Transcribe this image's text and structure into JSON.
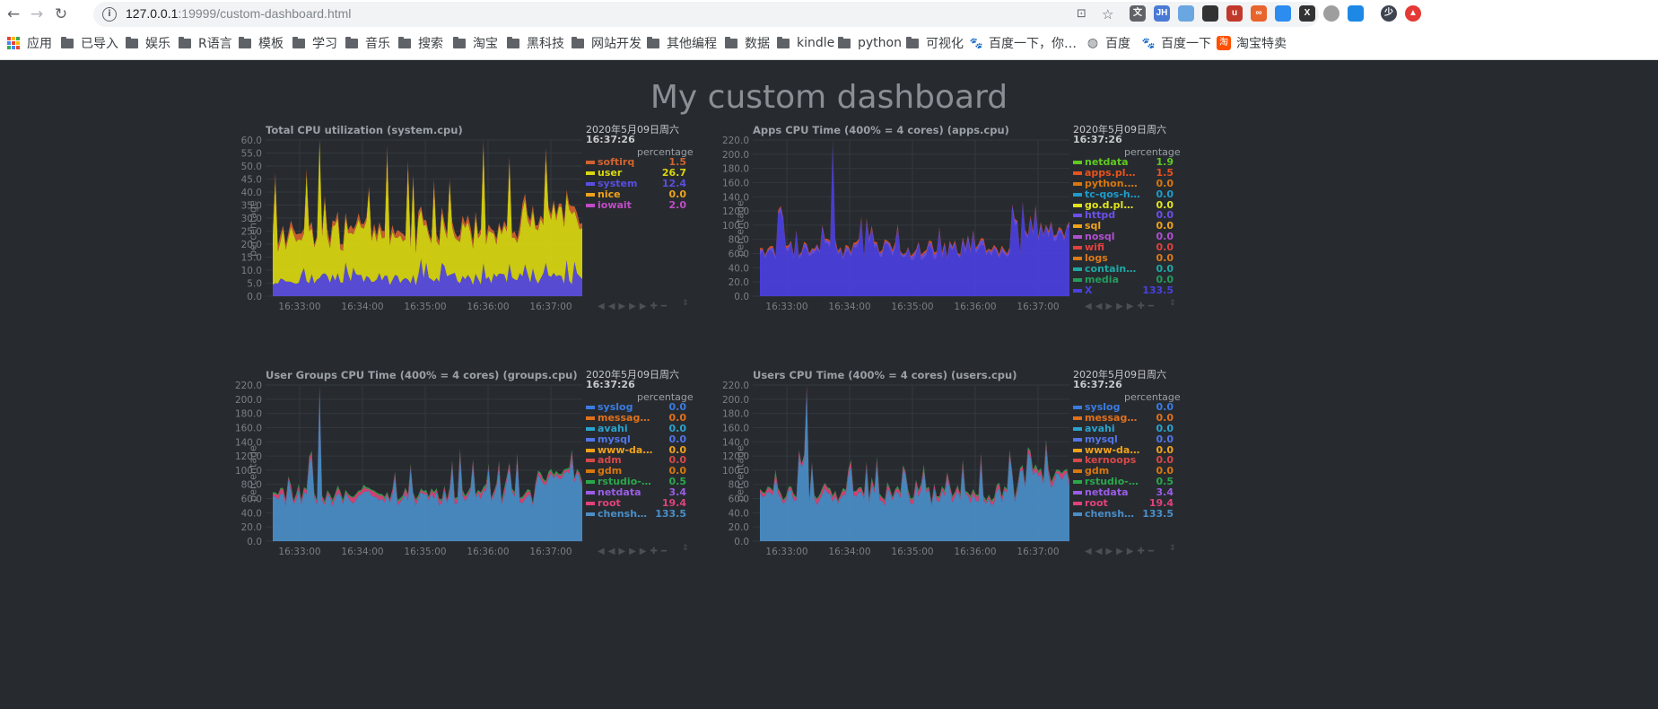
{
  "browser": {
    "url_host": "127.0.0.1",
    "url_rest": ":19999/custom-dashboard.html",
    "bookmarks": [
      {
        "label": "应用",
        "icon": "apps-grid-icon"
      },
      {
        "label": "已导入",
        "icon": "folder-icon"
      },
      {
        "label": "娱乐",
        "icon": "folder-icon"
      },
      {
        "label": "R语言",
        "icon": "folder-icon"
      },
      {
        "label": "模板",
        "icon": "folder-icon"
      },
      {
        "label": "学习",
        "icon": "folder-icon"
      },
      {
        "label": "音乐",
        "icon": "folder-icon"
      },
      {
        "label": "搜索",
        "icon": "folder-icon"
      },
      {
        "label": "淘宝",
        "icon": "folder-icon"
      },
      {
        "label": "黑科技",
        "icon": "folder-icon"
      },
      {
        "label": "网站开发",
        "icon": "folder-icon"
      },
      {
        "label": "其他编程",
        "icon": "folder-icon"
      },
      {
        "label": "数据",
        "icon": "folder-icon"
      },
      {
        "label": "kindle",
        "icon": "folder-icon"
      },
      {
        "label": "python",
        "icon": "folder-icon"
      },
      {
        "label": "可视化",
        "icon": "folder-icon"
      },
      {
        "label": "百度一下，你…",
        "icon": "baidu-paw-icon"
      },
      {
        "label": "百度",
        "icon": "globe-icon"
      },
      {
        "label": "百度一下",
        "icon": "baidu-paw-icon"
      },
      {
        "label": "淘宝特卖",
        "icon": "taobao-icon"
      }
    ],
    "extensions": [
      {
        "text": "文",
        "color": "#5f6368",
        "name": "translate-icon"
      },
      {
        "text": "JH",
        "color": "#4a7bd4",
        "name": "jsonhandle-icon"
      },
      {
        "text": "",
        "color": "#6aa6e0",
        "name": "shield-ext-icon"
      },
      {
        "text": "",
        "color": "#333333",
        "name": "ghost-ext-icon"
      },
      {
        "text": "u",
        "color": "#c0392b",
        "name": "ublock-icon"
      },
      {
        "text": "∞",
        "color": "#e8642c",
        "name": "infinity-ext-icon"
      },
      {
        "text": "",
        "color": "#2d8cf0",
        "name": "feather-ext-icon"
      },
      {
        "text": "X",
        "color": "#333333",
        "name": "x-ext-icon"
      },
      {
        "text": "",
        "color": "#9e9e9e",
        "name": "circle-ext-icon"
      },
      {
        "text": "",
        "color": "#1e88e5",
        "name": "clock-ext-icon"
      },
      {
        "text": "少",
        "color": "#3d4450",
        "name": "avatar"
      },
      {
        "text": "▲",
        "color": "#e53935",
        "name": "update-icon"
      }
    ]
  },
  "dashboard": {
    "title": "My custom dashboard",
    "charts": [
      {
        "title": "Total CPU utilization (system.cpu)",
        "ylabel": "percentage",
        "unit": "percentage",
        "date": "2020年5月09日周六",
        "time": "16:37:26",
        "yticks": [
          "60.0",
          "55.0",
          "50.0",
          "45.0",
          "40.0",
          "35.0",
          "30.0",
          "25.0",
          "20.0",
          "15.0",
          "10.0",
          "5.0",
          "0.0"
        ],
        "xticks": [
          "16:33:00",
          "16:34:00",
          "16:35:00",
          "16:36:00",
          "16:37:00"
        ],
        "legend": [
          {
            "name": "softirq",
            "value": "1.5",
            "color": "#d1632f"
          },
          {
            "name": "user",
            "value": "26.7",
            "color": "#d9d70f"
          },
          {
            "name": "system",
            "value": "12.4",
            "color": "#5a4ee0"
          },
          {
            "name": "nice",
            "value": "0.0",
            "color": "#f0a21a"
          },
          {
            "name": "iowait",
            "value": "2.0",
            "color": "#c24bc8"
          }
        ]
      },
      {
        "title": "Apps CPU Time (400% = 4 cores) (apps.cpu)",
        "ylabel": "percentage",
        "unit": "percentage",
        "date": "2020年5月09日周六",
        "time": "16:37:26",
        "yticks": [
          "220.0",
          "200.0",
          "180.0",
          "160.0",
          "140.0",
          "120.0",
          "100.0",
          "80.0",
          "60.0",
          "40.0",
          "20.0",
          "0.0"
        ],
        "xticks": [
          "16:33:00",
          "16:34:00",
          "16:35:00",
          "16:36:00",
          "16:37:00"
        ],
        "legend": [
          {
            "name": "netdata",
            "value": "1.9",
            "color": "#60c820"
          },
          {
            "name": "apps.plu…",
            "value": "1.5",
            "color": "#e8521c"
          },
          {
            "name": "python.…",
            "value": "0.0",
            "color": "#d9770c"
          },
          {
            "name": "tc-qos-h…",
            "value": "0.0",
            "color": "#1f9bc9"
          },
          {
            "name": "go.d.plu…",
            "value": "0.0",
            "color": "#e3e41b"
          },
          {
            "name": "httpd",
            "value": "0.0",
            "color": "#6b4fe8"
          },
          {
            "name": "sql",
            "value": "0.0",
            "color": "#f0a21a"
          },
          {
            "name": "nosql",
            "value": "0.0",
            "color": "#b14fd0"
          },
          {
            "name": "wifi",
            "value": "0.0",
            "color": "#e0413e"
          },
          {
            "name": "logs",
            "value": "0.0",
            "color": "#dd7a1a"
          },
          {
            "name": "containers",
            "value": "0.0",
            "color": "#1fa8a4"
          },
          {
            "name": "media",
            "value": "0.0",
            "color": "#239c5e"
          },
          {
            "name": "X",
            "value": "133.5",
            "color": "#4a40e0"
          }
        ]
      },
      {
        "title": "User Groups CPU Time (400% = 4 cores) (groups.cpu)",
        "ylabel": "percentage",
        "unit": "percentage",
        "date": "2020年5月09日周六",
        "time": "16:37:26",
        "yticks": [
          "220.0",
          "200.0",
          "180.0",
          "160.0",
          "140.0",
          "120.0",
          "100.0",
          "80.0",
          "60.0",
          "40.0",
          "20.0",
          "0.0"
        ],
        "xticks": [
          "16:33:00",
          "16:34:00",
          "16:35:00",
          "16:36:00",
          "16:37:00"
        ],
        "legend": [
          {
            "name": "syslog",
            "value": "0.0",
            "color": "#3b7be0"
          },
          {
            "name": "message…",
            "value": "0.0",
            "color": "#e0701c"
          },
          {
            "name": "avahi",
            "value": "0.0",
            "color": "#2aa3cf"
          },
          {
            "name": "mysql",
            "value": "0.0",
            "color": "#5276e8"
          },
          {
            "name": "www-data",
            "value": "0.0",
            "color": "#f0a21a"
          },
          {
            "name": "adm",
            "value": "0.0",
            "color": "#d84848"
          },
          {
            "name": "gdm",
            "value": "0.0",
            "color": "#d9770c"
          },
          {
            "name": "rstudio-…",
            "value": "0.5",
            "color": "#2aa84a"
          },
          {
            "name": "netdata",
            "value": "3.4",
            "color": "#9b5de5"
          },
          {
            "name": "root",
            "value": "19.4",
            "color": "#e0427a"
          },
          {
            "name": "chensha…",
            "value": "133.5",
            "color": "#4a8ec8"
          }
        ]
      },
      {
        "title": "Users CPU Time (400% = 4 cores) (users.cpu)",
        "ylabel": "percentage",
        "unit": "percentage",
        "date": "2020年5月09日周六",
        "time": "16:37:26",
        "yticks": [
          "220.0",
          "200.0",
          "180.0",
          "160.0",
          "140.0",
          "120.0",
          "100.0",
          "80.0",
          "60.0",
          "40.0",
          "20.0",
          "0.0"
        ],
        "xticks": [
          "16:33:00",
          "16:34:00",
          "16:35:00",
          "16:36:00",
          "16:37:00"
        ],
        "legend": [
          {
            "name": "syslog",
            "value": "0.0",
            "color": "#3b7be0"
          },
          {
            "name": "message…",
            "value": "0.0",
            "color": "#e0701c"
          },
          {
            "name": "avahi",
            "value": "0.0",
            "color": "#2aa3cf"
          },
          {
            "name": "mysql",
            "value": "0.0",
            "color": "#5276e8"
          },
          {
            "name": "www-data",
            "value": "0.0",
            "color": "#f0a21a"
          },
          {
            "name": "kernoops",
            "value": "0.0",
            "color": "#d84848"
          },
          {
            "name": "gdm",
            "value": "0.0",
            "color": "#d9770c"
          },
          {
            "name": "rstudio-…",
            "value": "0.5",
            "color": "#2aa84a"
          },
          {
            "name": "netdata",
            "value": "3.4",
            "color": "#9b5de5"
          },
          {
            "name": "root",
            "value": "19.4",
            "color": "#e0427a"
          },
          {
            "name": "chensha…",
            "value": "133.5",
            "color": "#4a8ec8"
          }
        ]
      }
    ]
  }
}
